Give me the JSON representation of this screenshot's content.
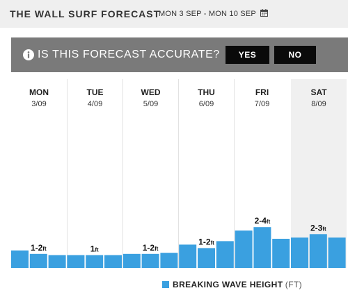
{
  "header": {
    "title": "THE WALL SURF FORECAST",
    "date_range": "MON 3 SEP - MON 10 SEP",
    "calendar_icon": "calendar-icon"
  },
  "banner": {
    "icon": "info-icon",
    "question": "IS THIS FORECAST ACCURATE?",
    "yes_label": "YES",
    "no_label": "NO"
  },
  "days": [
    {
      "name": "MON",
      "date": "3/09"
    },
    {
      "name": "TUE",
      "date": "4/09"
    },
    {
      "name": "WED",
      "date": "5/09"
    },
    {
      "name": "THU",
      "date": "6/09"
    },
    {
      "name": "FRI",
      "date": "7/09"
    },
    {
      "name": "SAT",
      "date": "8/09"
    }
  ],
  "legend": {
    "label": "BREAKING WAVE HEIGHT",
    "unit": "(FT)"
  },
  "chart_data": {
    "type": "bar",
    "bars_per_day": 3,
    "values": [
      1.5,
      1.2,
      1.1,
      1.1,
      1.1,
      1.1,
      1.2,
      1.2,
      1.3,
      2.0,
      1.7,
      2.3,
      3.2,
      3.5,
      2.5,
      2.6,
      2.9,
      2.6
    ],
    "day_labels": [
      {
        "min": "1",
        "max": "2",
        "unit": "ft"
      },
      {
        "min": "",
        "max": "1",
        "unit": "ft"
      },
      {
        "min": "1",
        "max": "2",
        "unit": "ft"
      },
      {
        "min": "1",
        "max": "2",
        "unit": "ft"
      },
      {
        "min": "2",
        "max": "4",
        "unit": "ft"
      },
      {
        "min": "2",
        "max": "3",
        "unit": "ft"
      }
    ],
    "color": "#3aa0e0",
    "ylim": [
      0,
      10
    ]
  }
}
